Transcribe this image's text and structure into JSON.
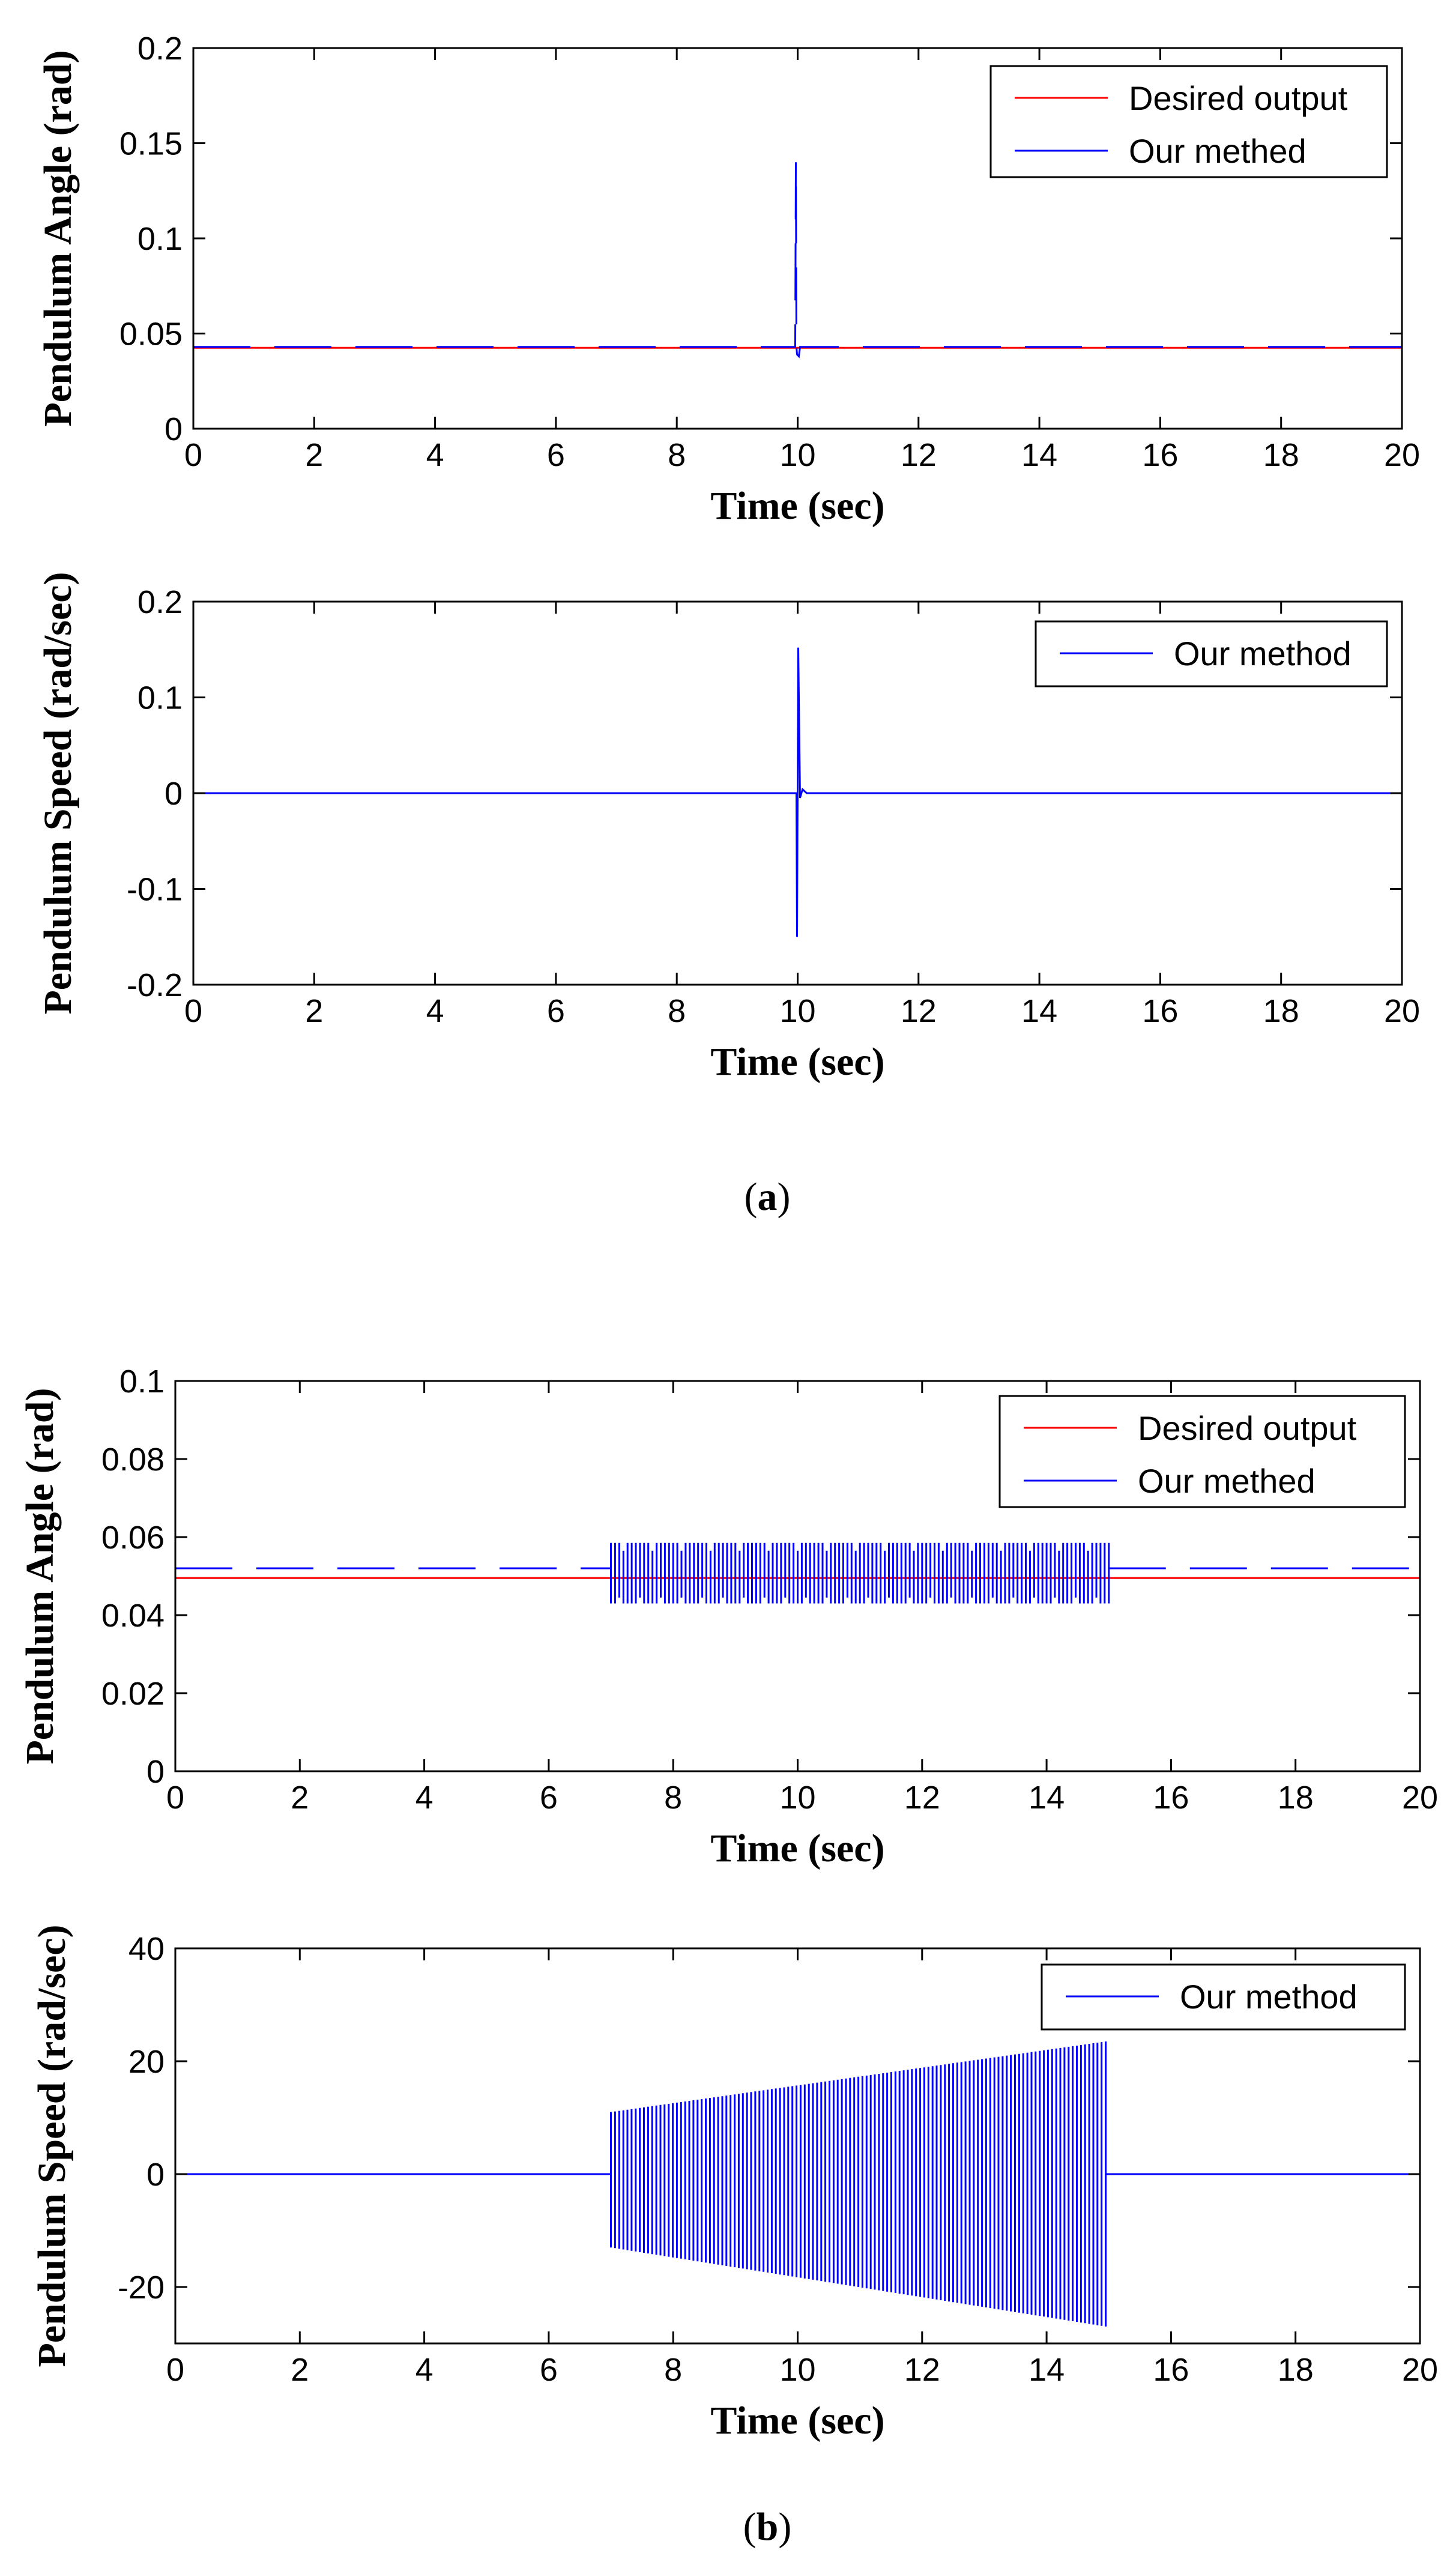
{
  "captions": {
    "a": {
      "open": "(",
      "letter": "a",
      "close": ")"
    },
    "b": {
      "open": "(",
      "letter": "b",
      "close": ")"
    }
  },
  "colors": {
    "desired": "#ff0000",
    "method": "#0000ff",
    "axis": "#000000"
  },
  "chart_data": [
    {
      "id": "a_angle",
      "type": "line",
      "xlabel": "Time (sec)",
      "ylabel": "Pendulum Angle (rad)",
      "xlim": [
        0,
        20
      ],
      "ylim": [
        0,
        0.2
      ],
      "xticks": [
        0,
        2,
        4,
        6,
        8,
        10,
        12,
        14,
        16,
        18,
        20
      ],
      "yticks": [
        0,
        0.05,
        0.1,
        0.15,
        0.2
      ],
      "ytick_labels": [
        "0",
        "0.05",
        "0.1",
        "0.15",
        "0.2"
      ],
      "legend_position": "top-right",
      "series": [
        {
          "name": "Desired output",
          "style": "solid",
          "color": "#ff0000",
          "x": [
            0,
            20
          ],
          "y": [
            0.0425,
            0.0425
          ]
        },
        {
          "name": "Our methed",
          "style": "dashed",
          "color": "#0000ff",
          "x": [
            0,
            9.96,
            9.97,
            9.98,
            9.99,
            10.02,
            10.04,
            10.08,
            20
          ],
          "y": [
            0.043,
            0.043,
            0.14,
            0.043,
            0.039,
            0.038,
            0.043,
            0.043,
            0.043
          ]
        }
      ]
    },
    {
      "id": "a_speed",
      "type": "line",
      "xlabel": "Time (sec)",
      "ylabel": "Pendulum Speed (rad/sec)",
      "xlim": [
        0,
        20
      ],
      "ylim": [
        -0.2,
        0.2
      ],
      "xticks": [
        0,
        2,
        4,
        6,
        8,
        10,
        12,
        14,
        16,
        18,
        20
      ],
      "yticks": [
        -0.2,
        -0.1,
        0,
        0.1,
        0.2
      ],
      "ytick_labels": [
        "-0.2",
        "-0.1",
        "0",
        "0.1",
        "0.2"
      ],
      "legend_position": "top-right",
      "series": [
        {
          "name": "Our method",
          "style": "solid",
          "color": "#0000ff",
          "x": [
            0,
            9.98,
            9.99,
            10.0,
            10.01,
            10.04,
            10.08,
            10.15,
            20
          ],
          "y": [
            0,
            0,
            -0.15,
            0,
            0.152,
            -0.005,
            0.004,
            0,
            0
          ]
        }
      ]
    },
    {
      "id": "b_angle",
      "type": "line",
      "xlabel": "Time (sec)",
      "ylabel": "Pendulum Angle (rad)",
      "xlim": [
        0,
        20
      ],
      "ylim": [
        0,
        0.1
      ],
      "xticks": [
        0,
        2,
        4,
        6,
        8,
        10,
        12,
        14,
        16,
        18,
        20
      ],
      "yticks": [
        0,
        0.02,
        0.04,
        0.06,
        0.08,
        0.1
      ],
      "ytick_labels": [
        "0",
        "0.02",
        "0.04",
        "0.06",
        "0.08",
        "0.1"
      ],
      "legend_position": "top-right",
      "series": [
        {
          "name": "Desired output",
          "style": "solid",
          "color": "#ff0000",
          "x": [
            0,
            20
          ],
          "y": [
            0.0495,
            0.0495
          ]
        },
        {
          "name": "Our methed",
          "style": "dashed",
          "color": "#0000ff",
          "baseline": 0.052,
          "oscillation": {
            "start": 7.0,
            "end": 15.0,
            "high": 0.0585,
            "low": 0.043,
            "cycles": 120
          },
          "xlim": [
            0,
            20
          ]
        }
      ]
    },
    {
      "id": "b_speed",
      "type": "line",
      "xlabel": "Time (sec)",
      "ylabel": "Pendulum Speed (rad/sec)",
      "xlim": [
        0,
        20
      ],
      "ylim": [
        -30,
        40
      ],
      "xticks": [
        0,
        2,
        4,
        6,
        8,
        10,
        12,
        14,
        16,
        18,
        20
      ],
      "yticks": [
        -20,
        0,
        20,
        40
      ],
      "ytick_labels": [
        "-20",
        "0",
        "20",
        "40"
      ],
      "legend_position": "top-right",
      "series": [
        {
          "name": "Our method",
          "style": "solid",
          "color": "#0000ff",
          "baseline": 0,
          "oscillation": {
            "start": 7.0,
            "end": 14.95,
            "amp_start_high": 11,
            "amp_end_high": 23.5,
            "amp_start_low": -13,
            "amp_end_low": -27,
            "cycles": 120
          },
          "xlim": [
            0,
            20
          ]
        }
      ]
    }
  ]
}
